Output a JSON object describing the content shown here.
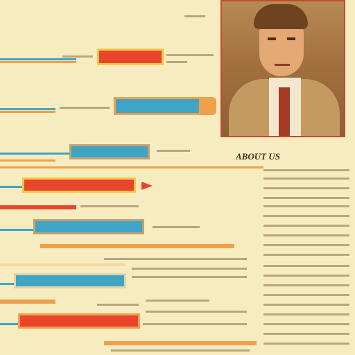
{
  "heading": "ABOUT US",
  "colors": {
    "background": "#f6ecc0",
    "red": "#e8452c",
    "orange": "#f0a04a",
    "blue": "#3fa5c6",
    "tan": "#c4a070",
    "ink": "#6b4b2a"
  },
  "photo_icon": "portrait-photo",
  "arrow_icon": "arrow-icon"
}
